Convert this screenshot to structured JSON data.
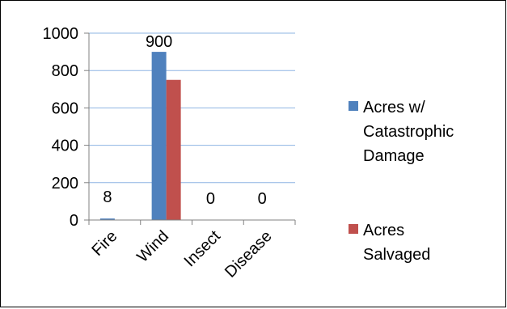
{
  "chart_data": {
    "type": "bar",
    "categories": [
      "Fire",
      "Wind",
      "Insect",
      "Disease"
    ],
    "series": [
      {
        "name": "Acres w/ Catastrophic Damage",
        "name_lines": [
          "Acres w/",
          "Catastrophic",
          "Damage"
        ],
        "color": "#4f81bd",
        "values": [
          8,
          900,
          0,
          0
        ],
        "data_labels": [
          "8",
          "900",
          "0",
          "0"
        ]
      },
      {
        "name": "Acres Salvaged",
        "name_lines": [
          "Acres",
          "Salvaged"
        ],
        "color": "#c0504d",
        "values": [
          0,
          750,
          0,
          0
        ]
      }
    ],
    "y_ticks": [
      "0",
      "200",
      "400",
      "600",
      "800",
      "1000"
    ],
    "ylim": [
      0,
      1000
    ],
    "grid": true,
    "legend_position": "right",
    "category_label_rotation": "-45deg"
  }
}
